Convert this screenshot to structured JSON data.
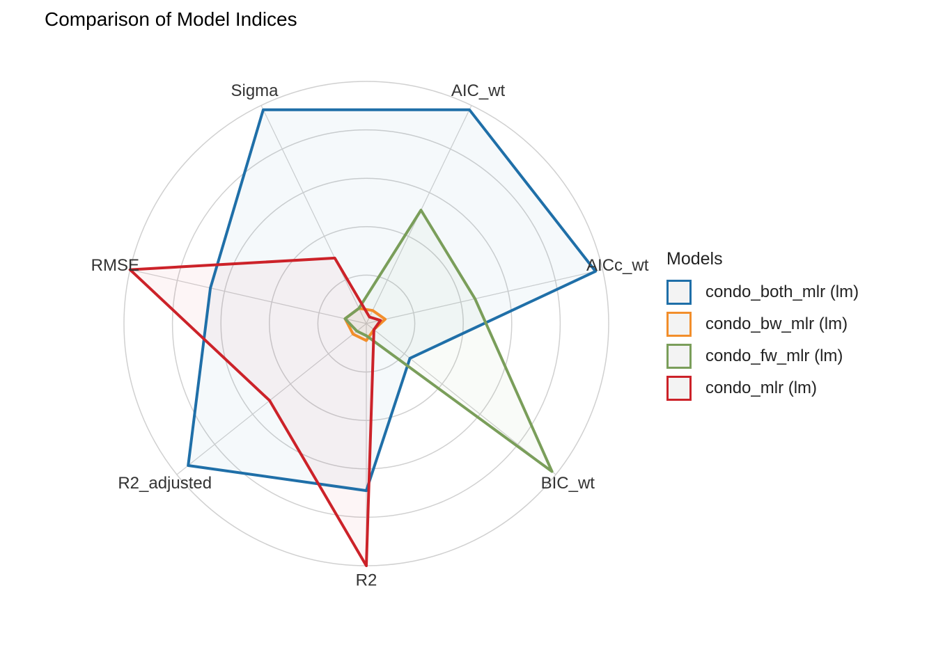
{
  "chart_data": {
    "type": "radar",
    "title": "Comparison of Model Indices",
    "axes": [
      "AIC_wt",
      "AICc_wt",
      "BIC_wt",
      "R2",
      "R2_adjusted",
      "RMSE",
      "Sigma"
    ],
    "rlim": [
      0,
      1
    ],
    "grid_rings": 5,
    "legend_title": "Models",
    "legend_position": "right",
    "series": [
      {
        "name": "condo_both_mlr (lm)",
        "color": "#1F6FA8",
        "values": [
          0.98,
          0.97,
          0.23,
          0.69,
          0.94,
          0.66,
          0.98
        ]
      },
      {
        "name": "condo_bw_mlr (lm)",
        "color": "#F28E2B",
        "values": [
          0.06,
          0.08,
          0.04,
          0.07,
          0.07,
          0.09,
          0.07
        ]
      },
      {
        "name": "condo_fw_mlr (lm)",
        "color": "#7A9E5A",
        "values": [
          0.52,
          0.46,
          0.98,
          0.05,
          0.05,
          0.09,
          0.07
        ]
      },
      {
        "name": "condo_mlr (lm)",
        "color": "#CC2229",
        "values": [
          0.03,
          0.06,
          0.04,
          1.0,
          0.51,
          1.0,
          0.3
        ]
      }
    ]
  }
}
